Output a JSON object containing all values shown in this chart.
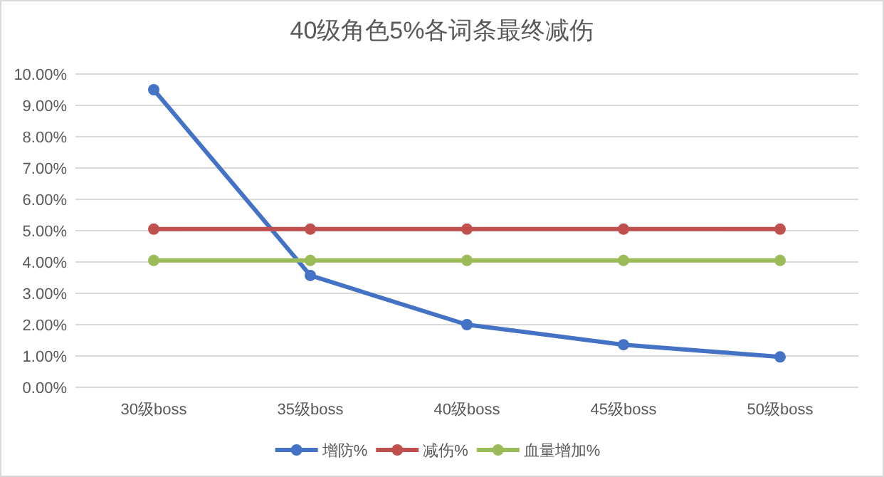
{
  "chart_data": {
    "type": "line",
    "title": "40级角色5%各词条最终减伤",
    "categories": [
      "30级boss",
      "35级boss",
      "40级boss",
      "45级boss",
      "50级boss"
    ],
    "series": [
      {
        "name": "增防%",
        "color": "#4472c4",
        "values": [
          9.5,
          3.57,
          2.0,
          1.36,
          0.97
        ]
      },
      {
        "name": "减伤%",
        "color": "#c0504d",
        "values": [
          5.05,
          5.05,
          5.05,
          5.05,
          5.05
        ]
      },
      {
        "name": "血量增加%",
        "color": "#9bbb59",
        "values": [
          4.05,
          4.05,
          4.05,
          4.05,
          4.05
        ]
      }
    ],
    "ylim": [
      0,
      10
    ],
    "yticks": [
      {
        "value": 0,
        "label": "0.00%"
      },
      {
        "value": 1,
        "label": "1.00%"
      },
      {
        "value": 2,
        "label": "2.00%"
      },
      {
        "value": 3,
        "label": "3.00%"
      },
      {
        "value": 4,
        "label": "4.00%"
      },
      {
        "value": 5,
        "label": "5.00%"
      },
      {
        "value": 6,
        "label": "6.00%"
      },
      {
        "value": 7,
        "label": "7.00%"
      },
      {
        "value": 8,
        "label": "8.00%"
      },
      {
        "value": 9,
        "label": "9.00%"
      },
      {
        "value": 10,
        "label": "10.00%"
      }
    ],
    "grid": "y",
    "legend": "bottom",
    "marker": "circle",
    "line_style": "solid"
  }
}
